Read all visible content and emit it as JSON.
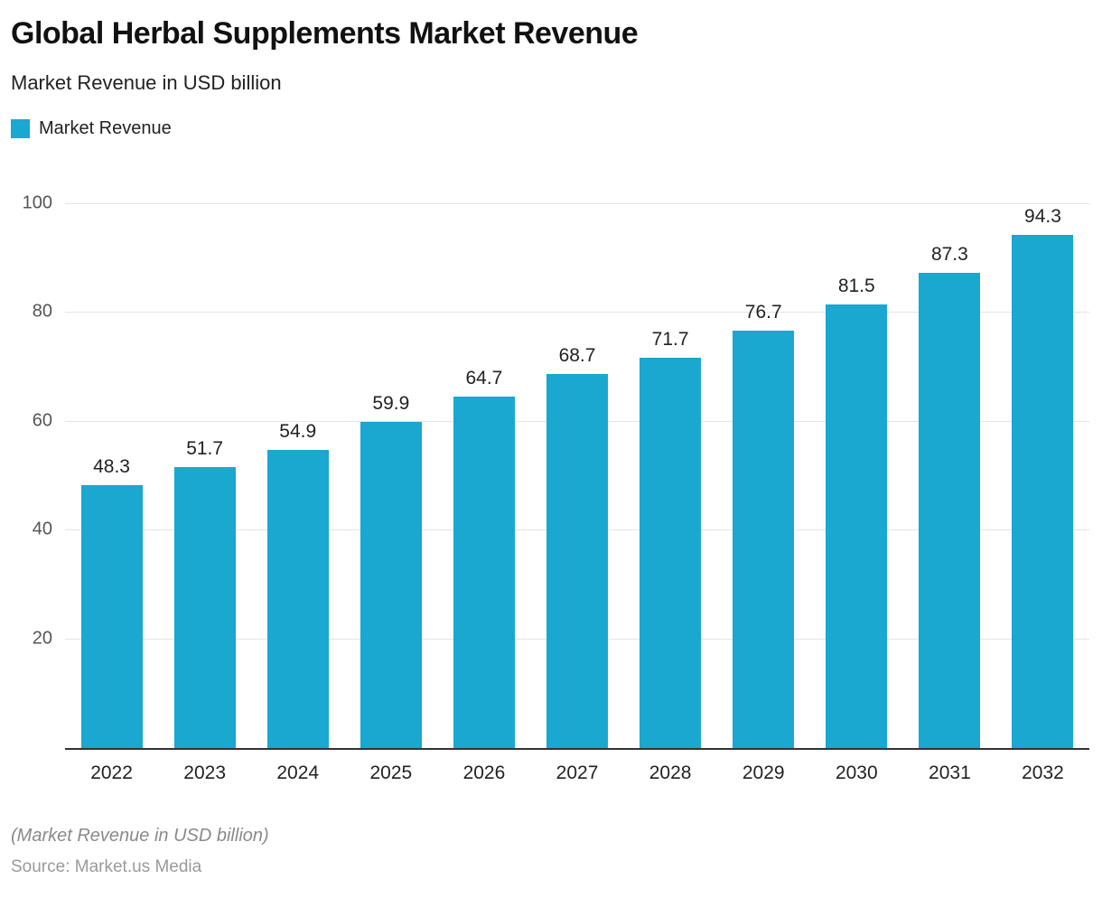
{
  "header": {
    "title": "Global Herbal Supplements Market Revenue",
    "subtitle": "Market Revenue in USD billion"
  },
  "legend": {
    "label": "Market Revenue"
  },
  "footer": {
    "footnote": "(Market Revenue in USD billion)",
    "source": "Source: Market.us Media"
  },
  "colors": {
    "bar": "#1AA7D0",
    "grid": "#e4e4e4",
    "axis": "#333333"
  },
  "chart_data": {
    "type": "bar",
    "title": "Global Herbal Supplements Market Revenue",
    "subtitle": "Market Revenue in USD billion",
    "categories": [
      "2022",
      "2023",
      "2024",
      "2025",
      "2026",
      "2027",
      "2028",
      "2029",
      "2030",
      "2031",
      "2032"
    ],
    "values": [
      48.3,
      51.7,
      54.9,
      59.9,
      64.7,
      68.7,
      71.7,
      76.7,
      81.5,
      87.3,
      94.3
    ],
    "series_name": "Market Revenue",
    "xlabel": "",
    "ylabel": "Market Revenue in USD billion",
    "ylim": [
      0,
      100
    ],
    "yticks": [
      20,
      40,
      60,
      80,
      100
    ],
    "grid": true,
    "legend_position": "top-left",
    "value_labels": true
  }
}
